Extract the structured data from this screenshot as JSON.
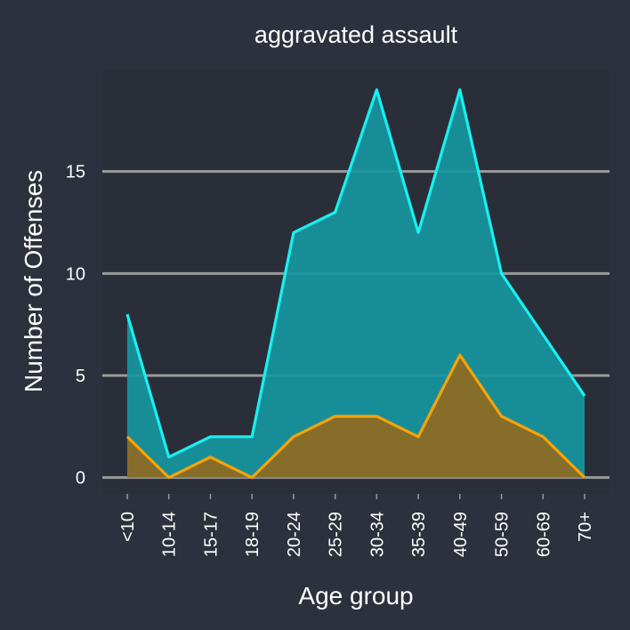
{
  "colors": {
    "background": "#2c313d",
    "panel": "#2a2e39",
    "gridline": "#9a9a9a",
    "series_1_line": "#19f0f0",
    "series_1_fill": "#16979f",
    "series_2_line": "#f5a30a",
    "series_2_fill": "#906a1f"
  },
  "chart_data": {
    "type": "area",
    "title": "aggravated assault",
    "xlabel": "Age group",
    "ylabel": "Number of Offenses",
    "categories": [
      "<10",
      "10-14",
      "15-17",
      "18-19",
      "20-24",
      "25-29",
      "30-34",
      "35-39",
      "40-49",
      "50-59",
      "60-69",
      "70+"
    ],
    "series": [
      {
        "values": [
          8,
          1,
          2,
          2,
          12,
          13,
          19,
          12,
          19,
          10,
          7,
          4
        ]
      },
      {
        "values": [
          2,
          0,
          1,
          0,
          2,
          3,
          3,
          2,
          6,
          3,
          2,
          0
        ]
      }
    ],
    "ylim": [
      -0.8,
      20
    ],
    "yticks": [
      0,
      5,
      10,
      15
    ],
    "grid": "horizontal-major",
    "legend": "none"
  }
}
